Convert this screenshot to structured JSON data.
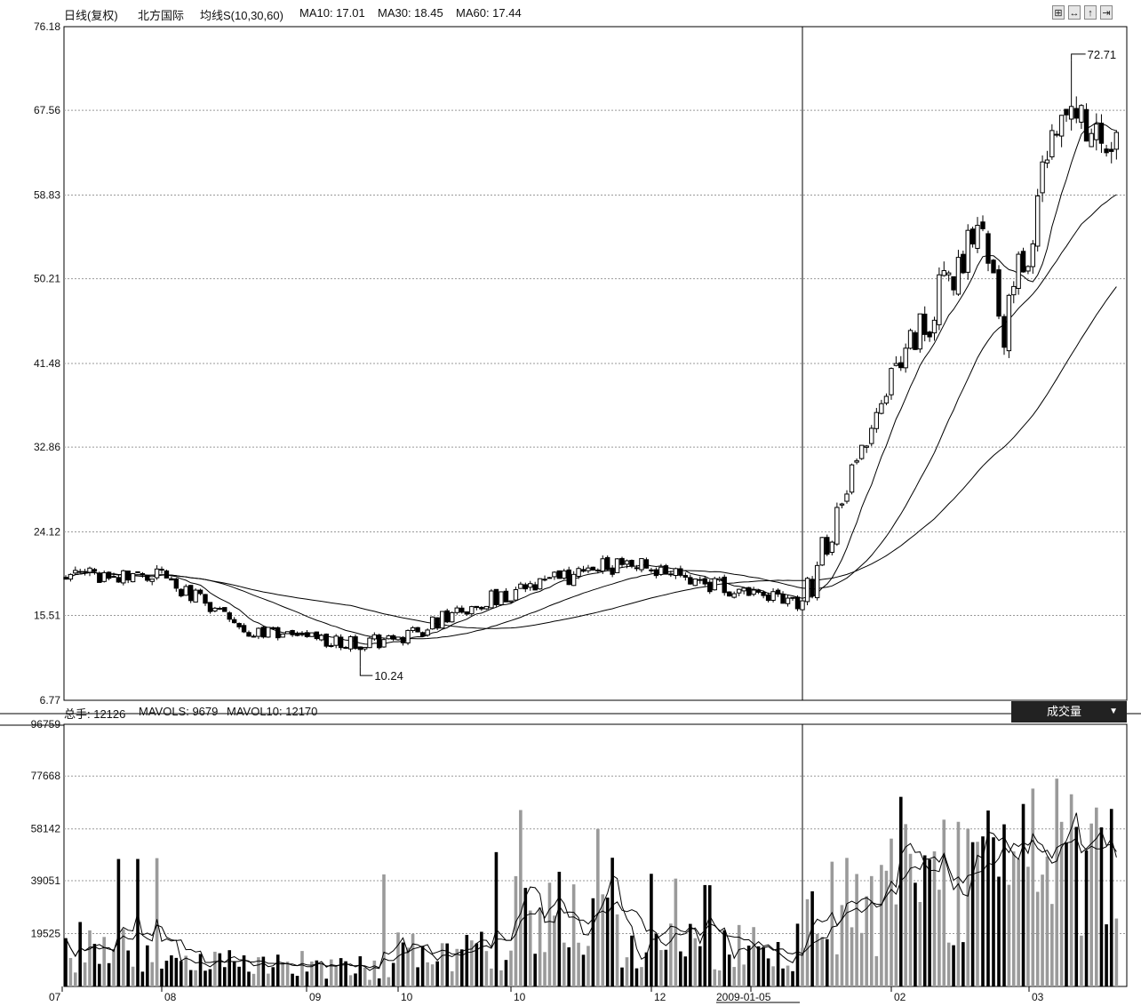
{
  "header": {
    "period": "日线(复权)",
    "stock_name": "北方国际",
    "ma_set": "均线S(10,30,60)",
    "ma10": "MA10: 17.01",
    "ma30": "MA30: 18.45",
    "ma60": "MA60: 17.44",
    "buttons": [
      "⊞",
      "↔",
      "↑",
      "⇥"
    ]
  },
  "volume_header": {
    "total": "总手: 12126",
    "mavol5": "MAVOLS: 9679",
    "mavol10": "MAVOL10: 12170",
    "tab_label": "成交量",
    "tab_arrow": "▼"
  },
  "chart_data": [
    {
      "type": "candlestick",
      "title": "",
      "y_ticks": [
        "76.18",
        "67.56",
        "58.83",
        "50.21",
        "41.48",
        "32.86",
        "24.12",
        "15.51",
        "6.77"
      ],
      "ylim": [
        6.77,
        76.18
      ],
      "grid": "dashed horizontal",
      "annotations": [
        {
          "label": "10.24",
          "type": "low",
          "value": 10.24,
          "period": "2008-10"
        },
        {
          "label": "72.71",
          "type": "high",
          "value": 72.71,
          "period": "2009-03"
        }
      ],
      "phases": [
        {
          "from": "2008-07",
          "to": "2008-08",
          "start": 19.6,
          "end": 19.6,
          "amp": 0.8
        },
        {
          "from": "2008-08",
          "to": "2008-09",
          "start": 19.6,
          "end": 14.0,
          "amp": 0.9
        },
        {
          "from": "2008-09",
          "to": "2008-10",
          "start": 14.0,
          "end": 12.6,
          "amp": 0.7
        },
        {
          "from": "2008-10",
          "to": "2008-10",
          "start": 12.6,
          "end": 13.2,
          "amp": 0.9
        },
        {
          "from": "2008-10",
          "to": "2008-11",
          "start": 13.2,
          "end": 18.0,
          "amp": 0.9
        },
        {
          "from": "2008-11",
          "to": "2008-12",
          "start": 18.0,
          "end": 21.0,
          "amp": 1.0
        },
        {
          "from": "2008-12",
          "to": "2009-01-05",
          "start": 21.0,
          "end": 16.6,
          "amp": 0.9
        },
        {
          "from": "2009-01-05",
          "to": "2009-02",
          "start": 16.6,
          "end": 40.0,
          "amp": 1.8
        },
        {
          "from": "2009-02",
          "to": "2009-02",
          "start": 40.0,
          "end": 55.0,
          "amp": 2.5
        },
        {
          "from": "2009-02",
          "to": "2009-03",
          "start": 55.0,
          "end": 46.0,
          "amp": 3.0
        },
        {
          "from": "2009-03",
          "to": "2009-03",
          "start": 46.0,
          "end": 68.0,
          "amp": 3.0
        },
        {
          "from": "2009-03",
          "to": "2009-03",
          "start": 68.0,
          "end": 63.0,
          "amp": 2.0
        }
      ],
      "moving_averages": [
        {
          "name": "MA10",
          "value": 17.01
        },
        {
          "name": "MA30",
          "value": 18.45
        },
        {
          "name": "MA60",
          "value": 17.44
        }
      ]
    },
    {
      "type": "bar",
      "title": "",
      "y_ticks": [
        "96759",
        "77668",
        "58142",
        "39051",
        "19525"
      ],
      "ylim": [
        0,
        96759
      ],
      "grid": "dashed horizontal",
      "level_by_period": [
        {
          "from": "2008-07",
          "to": "2008-08",
          "mean": 16000,
          "max": 48000
        },
        {
          "from": "2008-08",
          "to": "2008-09",
          "mean": 9000,
          "max": 25000
        },
        {
          "from": "2008-09",
          "to": "2008-10",
          "mean": 8000,
          "max": 47000
        },
        {
          "from": "2008-10",
          "to": "2008-11",
          "mean": 14000,
          "max": 56000
        },
        {
          "from": "2008-11",
          "to": "2008-12",
          "mean": 32000,
          "max": 67000
        },
        {
          "from": "2008-12",
          "to": "2009-01-05",
          "mean": 16000,
          "max": 42000
        },
        {
          "from": "2009-01-05",
          "to": "2009-02",
          "mean": 32000,
          "max": 86000
        },
        {
          "from": "2009-02",
          "to": "2009-03",
          "mean": 44000,
          "max": 70000
        },
        {
          "from": "2009-03",
          "to": "2009-03",
          "mean": 52000,
          "max": 96759
        }
      ],
      "moving_averages": [
        {
          "name": "MAVOL5",
          "value": 9679
        },
        {
          "name": "MAVOL10",
          "value": 12170
        }
      ],
      "latest": 12126
    }
  ],
  "x_axis": {
    "labels": [
      "07",
      "08",
      "09",
      "10",
      "10",
      "12",
      "2009-01-05",
      "02",
      "03"
    ]
  }
}
